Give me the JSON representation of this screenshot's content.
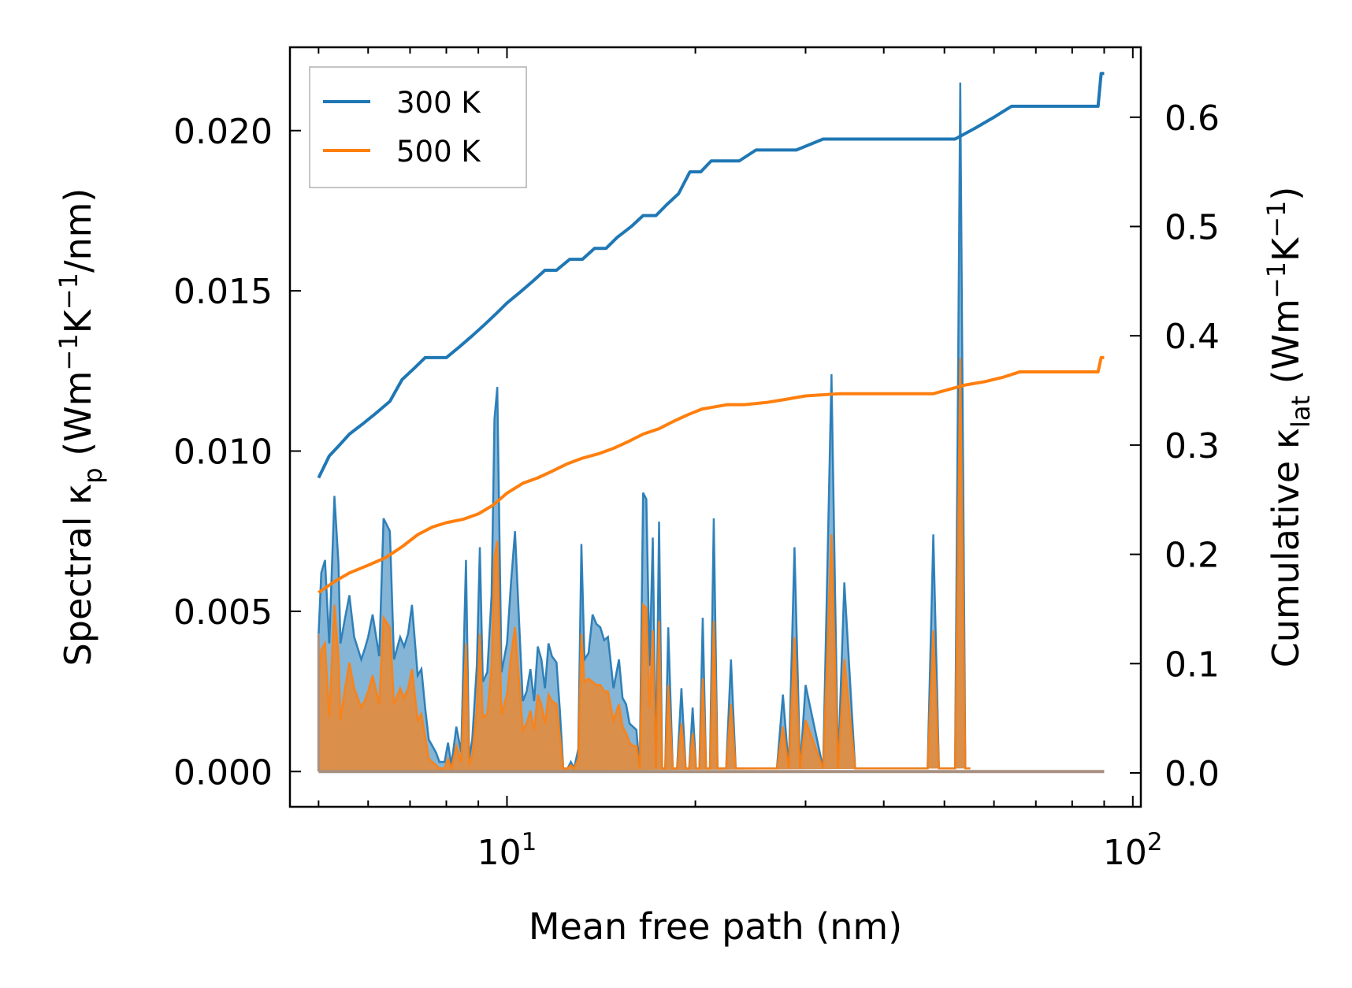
{
  "chart_data": {
    "type": "line",
    "xlabel": "Mean free path (nm)",
    "xscale": "log",
    "xlim": [
      4.5,
      103
    ],
    "x_ticks": [
      {
        "value": 10,
        "base": "10",
        "exp": "1"
      },
      {
        "value": 100,
        "base": "10",
        "exp": "2"
      }
    ],
    "left_axis": {
      "label_parts": [
        "Spectral κ",
        "p",
        " (Wm",
        "−1",
        "K",
        "−1",
        "/nm)"
      ],
      "ylim": [
        -0.0011,
        0.0226
      ],
      "ticks": [
        {
          "value": 0.0,
          "label": "0.000"
        },
        {
          "value": 0.005,
          "label": "0.005"
        },
        {
          "value": 0.01,
          "label": "0.010"
        },
        {
          "value": 0.015,
          "label": "0.015"
        },
        {
          "value": 0.02,
          "label": "0.020"
        }
      ]
    },
    "right_axis": {
      "label_parts": [
        "Cumulative κ",
        "lat",
        " (Wm",
        "−1",
        "K",
        "−1",
        ")"
      ],
      "ylim": [
        -0.031,
        0.664
      ],
      "ticks": [
        {
          "value": 0.0,
          "label": "0.0"
        },
        {
          "value": 0.1,
          "label": "0.1"
        },
        {
          "value": 0.2,
          "label": "0.2"
        },
        {
          "value": 0.3,
          "label": "0.3"
        },
        {
          "value": 0.4,
          "label": "0.4"
        },
        {
          "value": 0.5,
          "label": "0.5"
        },
        {
          "value": 0.6,
          "label": "0.6"
        }
      ]
    },
    "legend": {
      "position": "top-left",
      "entries": [
        {
          "label": "300 K",
          "color": "#1f77b4"
        },
        {
          "label": "500 K",
          "color": "#ff7f0e"
        }
      ]
    },
    "spectral_x": [
      5,
      5.05,
      5.12,
      5.2,
      5.3,
      5.38,
      5.42,
      5.5,
      5.6,
      5.7,
      5.85,
      5.92,
      6.0,
      6.1,
      6.25,
      6.35,
      6.5,
      6.6,
      6.75,
      6.85,
      6.95,
      7.05,
      7.2,
      7.3,
      7.4,
      7.5,
      7.6,
      7.7,
      7.8,
      7.95,
      8.05,
      8.15,
      8.3,
      8.45,
      8.6,
      8.7,
      8.8,
      8.95,
      9.05,
      9.15,
      9.3,
      9.45,
      9.55,
      9.65,
      9.8,
      10.0,
      10.15,
      10.3,
      10.45,
      10.6,
      10.75,
      10.9,
      11.05,
      11.2,
      11.35,
      11.5,
      11.65,
      11.8,
      12.0,
      12.15,
      12.3,
      12.5,
      12.65,
      12.8,
      13.0,
      13.15,
      13.3,
      13.5,
      13.7,
      13.9,
      14.1,
      14.3,
      14.5,
      14.8,
      15.1,
      15.3,
      15.5,
      15.7,
      15.9,
      16.1,
      16.3,
      16.5,
      16.7,
      16.9,
      17.1,
      17.3,
      17.5,
      17.7,
      17.9,
      18.1,
      18.4,
      18.7,
      19.0,
      19.3,
      19.55,
      19.8,
      20.05,
      20.3,
      20.55,
      20.8,
      21.1,
      21.4,
      21.7,
      22.0,
      22.4,
      22.8,
      23.2,
      23.6,
      24.2,
      24.8,
      25.3,
      25.8,
      26.4,
      27.0,
      27.6,
      28.2,
      28.8,
      29.4,
      30.0,
      32.0,
      33.0,
      33.8,
      34.6,
      36.0,
      47.0,
      48.0,
      49.0,
      50.0,
      51.0,
      52.0,
      53.0,
      54.0,
      55.0,
      55.6,
      56.2,
      57.0,
      58.0,
      59.0,
      60.0,
      61.0,
      62.0,
      63.0,
      64.0,
      65.0,
      66.0,
      67.0,
      68.0,
      85.0,
      86.0,
      87.0,
      88.0,
      89.0,
      90.0
    ],
    "series": [
      {
        "name": "300 K",
        "color": "#1f77b4",
        "spectral": [
          0.0043,
          0.0062,
          0.0066,
          0.004,
          0.0086,
          0.0065,
          0.004,
          0.0047,
          0.0055,
          0.0042,
          0.0035,
          0.0038,
          0.0042,
          0.0049,
          0.0036,
          0.0079,
          0.0075,
          0.0035,
          0.0042,
          0.0039,
          0.0043,
          0.0052,
          0.003,
          0.0032,
          0.002,
          0.001,
          0.0008,
          0.0006,
          0.0003,
          0.0003,
          0.0009,
          0.0002,
          0.0014,
          0.0006,
          0.0066,
          0.0004,
          0.001,
          0.0033,
          0.007,
          0.0028,
          0.0031,
          0.0055,
          0.011,
          0.012,
          0.0031,
          0.004,
          0.0059,
          0.0075,
          0.0048,
          0.0022,
          0.0025,
          0.0032,
          0.0022,
          0.0039,
          0.0035,
          0.0026,
          0.004,
          0.0036,
          0.0034,
          0.0019,
          0.0001,
          0.0001,
          0.0003,
          0.0001,
          0.0007,
          0.0071,
          0.0035,
          0.0037,
          0.0049,
          0.0046,
          0.0045,
          0.0041,
          0.0042,
          0.0026,
          0.0035,
          0.0023,
          0.0021,
          0.0015,
          0.0014,
          0.0013,
          0.0001,
          0.0087,
          0.0085,
          0.0033,
          0.0073,
          0.0001,
          0.0078,
          0.0001,
          0.0001,
          0.0045,
          0.0001,
          0.0001,
          0.0026,
          0.0001,
          0.0001,
          0.002,
          0.0001,
          0.0001,
          0.0048,
          0.0001,
          0.0001,
          0.0079,
          0.0001,
          0.0001,
          0.0001,
          0.0035,
          0.0001,
          0.0001,
          0.0001,
          0.0001,
          0.0001,
          0.0001,
          0.0001,
          0.0001,
          0.0024,
          0.0001,
          0.007,
          0.0001,
          0.0027,
          0.0001,
          0.0124,
          0.0001,
          0.0059,
          0.0001,
          0.0001,
          0.0074,
          0.0001,
          0.0001,
          0.0001,
          0.0001,
          0.0215,
          0.0001,
          0.0001
        ],
        "cumulative_x": [
          5.0,
          5.2,
          5.4,
          5.6,
          5.9,
          6.2,
          6.5,
          6.8,
          7.1,
          7.4,
          7.7,
          8.0,
          8.4,
          8.8,
          9.2,
          9.6,
          10.0,
          10.5,
          11.0,
          11.5,
          12.0,
          12.6,
          13.2,
          13.8,
          14.4,
          15.0,
          15.8,
          16.5,
          17.3,
          18.0,
          18.8,
          19.6,
          20.4,
          21.2,
          22.0,
          23.5,
          25.0,
          27.0,
          29.0,
          32.0,
          36.0,
          47.0,
          52.0,
          56.0,
          60.0,
          64.0,
          68.0,
          80.0,
          88.0,
          89.0,
          90.0
        ],
        "cumulative": [
          0.27,
          0.29,
          0.3,
          0.31,
          0.32,
          0.33,
          0.34,
          0.36,
          0.37,
          0.38,
          0.38,
          0.38,
          0.39,
          0.4,
          0.41,
          0.42,
          0.43,
          0.44,
          0.45,
          0.46,
          0.46,
          0.47,
          0.47,
          0.48,
          0.48,
          0.49,
          0.5,
          0.51,
          0.51,
          0.52,
          0.53,
          0.55,
          0.55,
          0.56,
          0.56,
          0.56,
          0.57,
          0.57,
          0.57,
          0.58,
          0.58,
          0.58,
          0.58,
          0.59,
          0.6,
          0.61,
          0.61,
          0.61,
          0.61,
          0.64,
          0.64
        ]
      },
      {
        "name": "500 K",
        "color": "#ff7f0e",
        "spectral": [
          0.0028,
          0.0038,
          0.004,
          0.0017,
          0.0052,
          0.0036,
          0.0016,
          0.0025,
          0.0034,
          0.0026,
          0.002,
          0.0022,
          0.0025,
          0.003,
          0.0021,
          0.0048,
          0.0045,
          0.0021,
          0.0026,
          0.0023,
          0.0026,
          0.0032,
          0.0016,
          0.0018,
          0.0011,
          0.0004,
          0.0003,
          0.0002,
          0.0001,
          0.0001,
          0.0004,
          0.0001,
          0.0008,
          0.0003,
          0.004,
          0.0002,
          0.0005,
          0.002,
          0.0043,
          0.0017,
          0.0018,
          0.0033,
          0.0067,
          0.0072,
          0.0018,
          0.0024,
          0.0036,
          0.0045,
          0.0029,
          0.0013,
          0.0015,
          0.0019,
          0.0013,
          0.0024,
          0.0021,
          0.0015,
          0.0024,
          0.0022,
          0.0021,
          0.0011,
          0.0001,
          0.0001,
          0.0002,
          0.0001,
          0.0004,
          0.0043,
          0.0028,
          0.0029,
          0.0028,
          0.0027,
          0.0027,
          0.0025,
          0.0025,
          0.0016,
          0.0021,
          0.0014,
          0.0012,
          0.0009,
          0.0008,
          0.0008,
          0.0001,
          0.0052,
          0.0051,
          0.002,
          0.0044,
          0.0001,
          0.0047,
          0.0001,
          0.0001,
          0.0027,
          0.0001,
          0.0001,
          0.0015,
          0.0001,
          0.0001,
          0.0012,
          0.0001,
          0.0001,
          0.0029,
          0.0001,
          0.0001,
          0.0047,
          0.0001,
          0.0001,
          0.0001,
          0.0021,
          0.0001,
          0.0001,
          0.0001,
          0.0001,
          0.0001,
          0.0001,
          0.0001,
          0.0001,
          0.0014,
          0.0001,
          0.0042,
          0.0001,
          0.0016,
          0.0001,
          0.0074,
          0.0001,
          0.0035,
          0.0001,
          0.0001,
          0.0044,
          0.0001,
          0.0001,
          0.0001,
          0.0001,
          0.0129,
          0.0001,
          0.0001
        ],
        "cumulative_x": [
          5.0,
          5.3,
          5.6,
          6.0,
          6.4,
          6.8,
          7.2,
          7.6,
          8.0,
          8.5,
          9.0,
          9.5,
          10.0,
          10.6,
          11.2,
          11.8,
          12.5,
          13.2,
          14.0,
          14.8,
          15.6,
          16.5,
          17.5,
          18.5,
          19.5,
          20.5,
          21.5,
          22.5,
          24.0,
          26.0,
          28.0,
          30.0,
          34.0,
          40.0,
          48.0,
          54.0,
          58.0,
          62.0,
          66.0,
          72.0,
          80.0,
          88.0,
          89.0,
          90.0
        ],
        "cumulative": [
          0.165,
          0.175,
          0.183,
          0.19,
          0.197,
          0.207,
          0.218,
          0.225,
          0.229,
          0.232,
          0.237,
          0.245,
          0.256,
          0.265,
          0.27,
          0.276,
          0.283,
          0.288,
          0.292,
          0.297,
          0.303,
          0.31,
          0.315,
          0.322,
          0.328,
          0.333,
          0.335,
          0.337,
          0.337,
          0.339,
          0.342,
          0.345,
          0.347,
          0.347,
          0.347,
          0.355,
          0.358,
          0.362,
          0.367,
          0.367,
          0.367,
          0.367,
          0.38,
          0.38
        ]
      }
    ]
  }
}
